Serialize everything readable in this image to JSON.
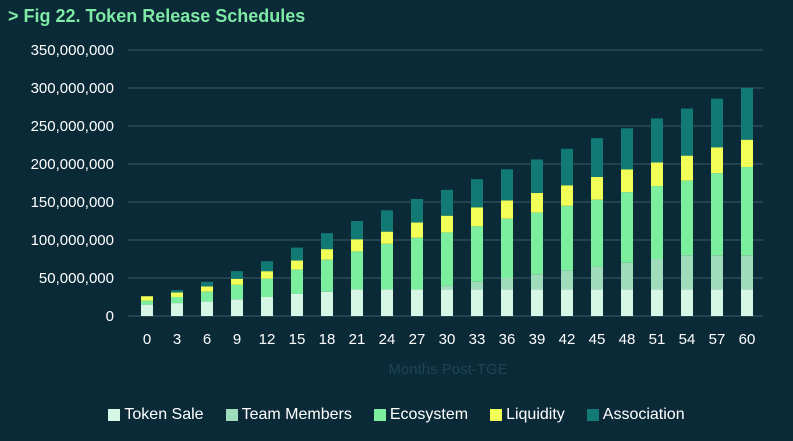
{
  "title": "> Fig 22. Token Release Schedules",
  "chart_data": {
    "type": "bar",
    "stacked": true,
    "xlabel": "Months Post-TGE",
    "ylabel": "",
    "ylim": [
      0,
      350000000
    ],
    "yticks": [
      "0",
      "50,000,000",
      "100,000,000",
      "150,000,000",
      "200,000,000",
      "250,000,000",
      "300,000,000",
      "350,000,000"
    ],
    "ytick_values": [
      0,
      50000000,
      100000000,
      150000000,
      200000000,
      250000000,
      300000000,
      350000000
    ],
    "grid": true,
    "legend_position": "bottom",
    "categories": [
      "0",
      "3",
      "6",
      "9",
      "12",
      "15",
      "18",
      "21",
      "24",
      "27",
      "30",
      "33",
      "36",
      "39",
      "42",
      "45",
      "48",
      "51",
      "54",
      "57",
      "60"
    ],
    "series": [
      {
        "name": "Token Sale",
        "color": "#d6f7e6",
        "values": [
          15000000,
          17000000,
          19000000,
          22000000,
          25000000,
          29000000,
          32000000,
          35000000,
          35000000,
          35000000,
          35000000,
          35000000,
          35000000,
          35000000,
          35000000,
          35000000,
          35000000,
          35000000,
          35000000,
          35000000,
          35000000
        ]
      },
      {
        "name": "Team Members",
        "color": "#9fdcbc",
        "values": [
          0,
          0,
          0,
          0,
          0,
          0,
          0,
          0,
          0,
          0,
          5000000,
          10000000,
          15000000,
          20000000,
          25000000,
          30000000,
          35000000,
          40000000,
          45000000,
          45000000,
          45000000
        ]
      },
      {
        "name": "Ecosystem",
        "color": "#7cef9e",
        "values": [
          5000000,
          8000000,
          13000000,
          19000000,
          24000000,
          32000000,
          42000000,
          50000000,
          60000000,
          68000000,
          70000000,
          73000000,
          78000000,
          81000000,
          85000000,
          88000000,
          93000000,
          96000000,
          98000000,
          108000000,
          116000000
        ]
      },
      {
        "name": "Liquidity",
        "color": "#f2ff57",
        "values": [
          6000000,
          6000000,
          7000000,
          8000000,
          10000000,
          12000000,
          14000000,
          16000000,
          16000000,
          20000000,
          22000000,
          25000000,
          24000000,
          26000000,
          27000000,
          30000000,
          30000000,
          31000000,
          33000000,
          34000000,
          36000000
        ]
      },
      {
        "name": "Association",
        "color": "#127a74",
        "values": [
          0,
          3000000,
          6000000,
          10000000,
          13000000,
          17000000,
          21000000,
          24000000,
          28000000,
          31000000,
          34000000,
          37000000,
          41000000,
          44000000,
          48000000,
          51000000,
          54000000,
          58000000,
          62000000,
          64000000,
          68000000
        ]
      }
    ]
  }
}
